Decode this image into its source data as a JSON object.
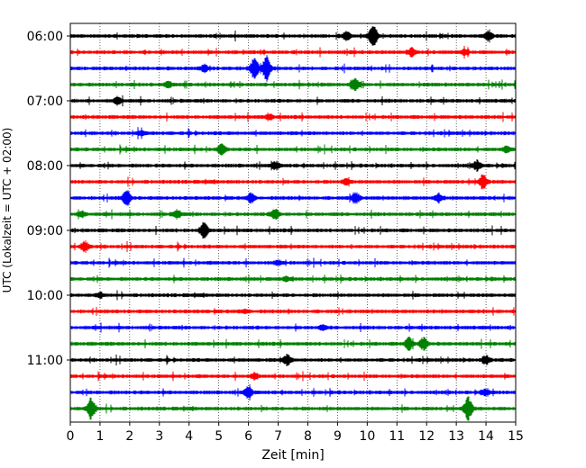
{
  "chart_data": {
    "type": "line",
    "xlabel": "Zeit  [min]",
    "ylabel": "UTC (Lokalzeit = UTC + 02:00)",
    "xlim": [
      0,
      15
    ],
    "x_ticks": [
      "0",
      "1",
      "2",
      "3",
      "4",
      "5",
      "6",
      "7",
      "8",
      "9",
      "10",
      "11",
      "12",
      "13",
      "14",
      "15"
    ],
    "y_ticks": [
      {
        "label": "06:00",
        "row": 0
      },
      {
        "label": "07:00",
        "row": 4
      },
      {
        "label": "08:00",
        "row": 8
      },
      {
        "label": "09:00",
        "row": 12
      },
      {
        "label": "10:00",
        "row": 16
      },
      {
        "label": "11:00",
        "row": 20
      }
    ],
    "grid": "vertical dotted at each minute",
    "trace_colors": [
      "#000000",
      "#ff0000",
      "#0000ff",
      "#008000"
    ],
    "rows": [
      {
        "start": "06:00",
        "events": [
          {
            "x": 10.2,
            "amp": 13
          },
          {
            "x": 9.3,
            "amp": 4
          },
          {
            "x": 14.1,
            "amp": 5
          }
        ]
      },
      {
        "start": "06:15",
        "events": [
          {
            "x": 11.5,
            "amp": 4
          },
          {
            "x": 13.3,
            "amp": 3
          }
        ]
      },
      {
        "start": "06:30",
        "events": [
          {
            "x": 6.2,
            "amp": 11
          },
          {
            "x": 6.6,
            "amp": 13
          },
          {
            "x": 4.5,
            "amp": 3
          }
        ]
      },
      {
        "start": "06:45",
        "events": [
          {
            "x": 9.6,
            "amp": 7
          },
          {
            "x": 3.3,
            "amp": 3
          }
        ]
      },
      {
        "start": "07:00",
        "events": [
          {
            "x": 1.6,
            "amp": 3
          }
        ]
      },
      {
        "start": "07:15",
        "events": [
          {
            "x": 6.7,
            "amp": 3
          }
        ]
      },
      {
        "start": "07:30",
        "events": [
          {
            "x": 2.4,
            "amp": 2
          }
        ]
      },
      {
        "start": "07:45",
        "events": [
          {
            "x": 5.1,
            "amp": 5
          },
          {
            "x": 14.7,
            "amp": 3
          }
        ]
      },
      {
        "start": "08:00",
        "events": [
          {
            "x": 6.9,
            "amp": 4
          },
          {
            "x": 13.7,
            "amp": 5
          }
        ]
      },
      {
        "start": "08:15",
        "events": [
          {
            "x": 13.9,
            "amp": 7
          },
          {
            "x": 9.3,
            "amp": 3
          }
        ]
      },
      {
        "start": "08:30",
        "events": [
          {
            "x": 1.9,
            "amp": 8
          },
          {
            "x": 6.1,
            "amp": 5
          },
          {
            "x": 9.6,
            "amp": 6
          },
          {
            "x": 12.4,
            "amp": 4
          }
        ]
      },
      {
        "start": "08:45",
        "events": [
          {
            "x": 3.6,
            "amp": 4
          },
          {
            "x": 6.9,
            "amp": 5
          },
          {
            "x": 0.4,
            "amp": 3
          }
        ]
      },
      {
        "start": "09:00",
        "events": [
          {
            "x": 4.5,
            "amp": 8
          }
        ]
      },
      {
        "start": "09:15",
        "events": [
          {
            "x": 0.5,
            "amp": 5
          }
        ]
      },
      {
        "start": "09:30",
        "events": [
          {
            "x": 7.0,
            "amp": 2
          }
        ]
      },
      {
        "start": "09:45",
        "events": [
          {
            "x": 7.3,
            "amp": 2
          }
        ]
      },
      {
        "start": "10:00",
        "events": [
          {
            "x": 1.0,
            "amp": 3
          }
        ]
      },
      {
        "start": "10:15",
        "events": [
          {
            "x": 5.9,
            "amp": 2
          }
        ]
      },
      {
        "start": "10:30",
        "events": [
          {
            "x": 8.5,
            "amp": 2
          }
        ]
      },
      {
        "start": "10:45",
        "events": [
          {
            "x": 11.4,
            "amp": 7
          },
          {
            "x": 11.9,
            "amp": 6
          }
        ]
      },
      {
        "start": "11:00",
        "events": [
          {
            "x": 7.3,
            "amp": 5
          },
          {
            "x": 14.0,
            "amp": 4
          }
        ]
      },
      {
        "start": "11:15",
        "events": [
          {
            "x": 6.2,
            "amp": 3
          }
        ]
      },
      {
        "start": "11:30",
        "events": [
          {
            "x": 6.0,
            "amp": 6
          },
          {
            "x": 14.0,
            "amp": 3
          }
        ]
      },
      {
        "start": "11:45",
        "events": [
          {
            "x": 0.7,
            "amp": 13
          },
          {
            "x": 13.4,
            "amp": 13
          }
        ]
      }
    ]
  }
}
